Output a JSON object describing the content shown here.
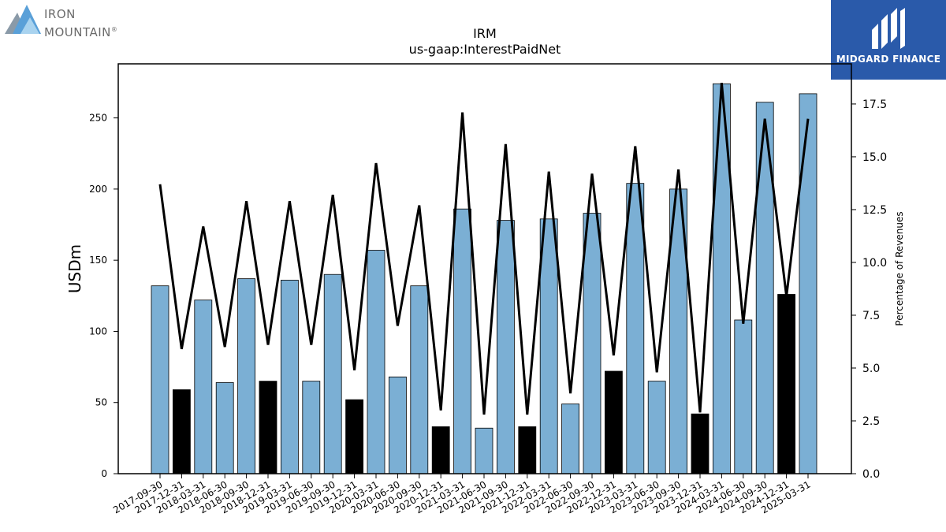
{
  "logos": {
    "left_text_line1": "IRON",
    "left_text_line2": "MOUNTAIN",
    "left_mark": "®",
    "right_text": "MIDGARD FINANCE"
  },
  "chart_data": {
    "type": "bar",
    "title": "IRM",
    "subtitle": "us-gaap:InterestPaidNet",
    "ylabel": "USDm",
    "y2label": "Percentage of Revenues",
    "ylim": [
      0,
      288
    ],
    "y2lim": [
      0,
      19.4
    ],
    "yticks": [
      0,
      50,
      100,
      150,
      200,
      250
    ],
    "y2ticks": [
      "0.0",
      "2.5",
      "5.0",
      "7.5",
      "10.0",
      "12.5",
      "15.0",
      "17.5"
    ],
    "colors": {
      "quarter_bar": "#7bafd4",
      "year_end_bar": "#000000",
      "line": "#000000"
    },
    "categories": [
      "2017-09-30",
      "2017-12-31",
      "2018-03-31",
      "2018-06-30",
      "2018-09-30",
      "2018-12-31",
      "2019-03-31",
      "2019-06-30",
      "2019-09-30",
      "2019-12-31",
      "2020-03-31",
      "2020-06-30",
      "2020-09-30",
      "2020-12-31",
      "2021-03-31",
      "2021-06-30",
      "2021-09-30",
      "2021-12-31",
      "2022-03-31",
      "2022-06-30",
      "2022-09-30",
      "2022-12-31",
      "2023-03-31",
      "2023-06-30",
      "2023-09-30",
      "2023-12-31",
      "2024-03-31",
      "2024-06-30",
      "2024-09-30",
      "2024-12-31",
      "2025-03-31"
    ],
    "series": [
      {
        "type": "bar",
        "values": [
          132,
          59,
          122,
          64,
          137,
          65,
          136,
          65,
          140,
          52,
          157,
          68,
          132,
          33,
          186,
          32,
          178,
          33,
          179,
          49,
          183,
          72,
          204,
          65,
          200,
          42,
          274,
          108,
          261,
          126,
          267
        ],
        "highlight": [
          false,
          true,
          false,
          false,
          false,
          true,
          false,
          false,
          false,
          true,
          false,
          false,
          false,
          true,
          false,
          false,
          false,
          true,
          false,
          false,
          false,
          true,
          false,
          false,
          false,
          true,
          false,
          false,
          false,
          true,
          false
        ]
      },
      {
        "type": "line",
        "axis": "secondary",
        "values": [
          13.7,
          5.9,
          11.7,
          6.0,
          12.9,
          6.1,
          12.9,
          6.1,
          13.2,
          4.9,
          14.7,
          7.0,
          12.7,
          3.0,
          17.1,
          2.8,
          15.6,
          2.8,
          14.3,
          3.8,
          14.2,
          5.6,
          15.5,
          4.8,
          14.4,
          2.9,
          18.5,
          7.1,
          16.8,
          8.4,
          16.8
        ]
      }
    ]
  }
}
